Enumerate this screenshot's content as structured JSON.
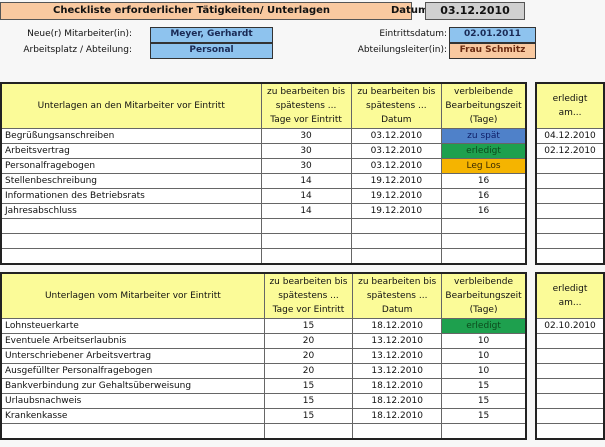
{
  "header": {
    "title": "Checkliste erforderlicher Tätigkeiten/ Unterlagen",
    "datum_label": "Datum:",
    "datum": "03.12.2010"
  },
  "info": {
    "mitarbeiter_label": "Neue(r) Mitarbeiter(in):",
    "mitarbeiter": "Meyer, Gerhardt",
    "abteilung_label": "Arbeitsplatz / Abteilung:",
    "abteilung": "Personal",
    "eintritt_label": "Eintrittsdatum:",
    "eintritt": "02.01.2011",
    "leiter_label": "Abteilungsleiter(in):",
    "leiter": "Frau Schmitz"
  },
  "columns": [
    "zu bearbeiten bis spätestens ... Tage vor Eintritt",
    "zu bearbeiten bis spätestens ... Datum",
    "verbleibende Bearbeitungszeit (Tage)",
    "erledigt am..."
  ],
  "colors": {
    "zu_spaet": "#4f81c9",
    "erledigt": "#1ea04e",
    "leg_los": "#f5b400",
    "header": "#fbfb98"
  },
  "table1": {
    "title": "Unterlagen an den Mitarbeiter vor Eintritt",
    "rows": [
      [
        "Begrüßungsanschreiben",
        "30",
        "03.12.2010",
        "zu spät",
        "04.12.2010"
      ],
      [
        "Arbeitsvertrag",
        "30",
        "03.12.2010",
        "erledigt",
        "02.12.2010"
      ],
      [
        "Personalfragebogen",
        "30",
        "03.12.2010",
        "Leg Los",
        ""
      ],
      [
        "Stellenbeschreibung",
        "14",
        "19.12.2010",
        "16",
        ""
      ],
      [
        "Informationen des Betriebsrats",
        "14",
        "19.12.2010",
        "16",
        ""
      ],
      [
        "Jahresabschluss",
        "14",
        "19.12.2010",
        "16",
        ""
      ],
      [
        "",
        "",
        "",
        "",
        ""
      ],
      [
        "",
        "",
        "",
        "",
        ""
      ],
      [
        "",
        "",
        "",
        "",
        ""
      ]
    ]
  },
  "table2": {
    "title": "Unterlagen vom Mitarbeiter vor Eintritt",
    "rows": [
      [
        "Lohnsteuerkarte",
        "15",
        "18.12.2010",
        "erledigt",
        "02.10.2010"
      ],
      [
        "Eventuele Arbeitserlaubnis",
        "20",
        "13.12.2010",
        "10",
        ""
      ],
      [
        "Unterschriebener Arbeitsvertrag",
        "20",
        "13.12.2010",
        "10",
        ""
      ],
      [
        "Ausgefüllter Personalfragebogen",
        "20",
        "13.12.2010",
        "10",
        ""
      ],
      [
        "Bankverbindung zur Gehaltsüberweisung",
        "15",
        "18.12.2010",
        "15",
        ""
      ],
      [
        "Urlaubsnachweis",
        "15",
        "18.12.2010",
        "15",
        ""
      ],
      [
        "Krankenkasse",
        "15",
        "18.12.2010",
        "15",
        ""
      ],
      [
        "",
        "",
        "",
        "",
        ""
      ]
    ]
  }
}
